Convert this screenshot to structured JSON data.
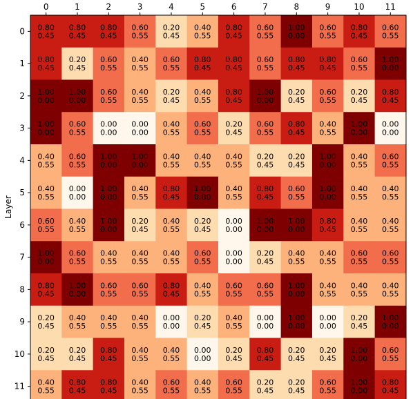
{
  "chart_data": {
    "type": "heatmap",
    "title": "",
    "xlabel": "",
    "ylabel": "Layer",
    "x_tick_position": "top",
    "colormap": "OrRd",
    "value_range": [
      0.0,
      1.0
    ],
    "x_tick_labels": [
      "0",
      "1",
      "2",
      "3",
      "4",
      "5",
      "6",
      "7",
      "8",
      "9",
      "10",
      "11"
    ],
    "y_tick_labels": [
      "0",
      "1",
      "2",
      "3",
      "4",
      "5",
      "6",
      "7",
      "8",
      "9",
      "10",
      "11"
    ],
    "cells": [
      [
        [
          "0.80",
          "0.45"
        ],
        [
          "0.80",
          "0.45"
        ],
        [
          "0.80",
          "0.45"
        ],
        [
          "0.60",
          "0.55"
        ],
        [
          "0.20",
          "0.45"
        ],
        [
          "0.40",
          "0.55"
        ],
        [
          "0.80",
          "0.45"
        ],
        [
          "0.60",
          "0.55"
        ],
        [
          "1.00",
          "0.00"
        ],
        [
          "0.60",
          "0.55"
        ],
        [
          "0.80",
          "0.45"
        ],
        [
          "0.60",
          "0.55"
        ]
      ],
      [
        [
          "0.80",
          "0.45"
        ],
        [
          "0.20",
          "0.45"
        ],
        [
          "0.60",
          "0.55"
        ],
        [
          "0.40",
          "0.55"
        ],
        [
          "0.60",
          "0.55"
        ],
        [
          "0.80",
          "0.45"
        ],
        [
          "0.80",
          "0.45"
        ],
        [
          "0.60",
          "0.55"
        ],
        [
          "0.80",
          "0.45"
        ],
        [
          "0.80",
          "0.45"
        ],
        [
          "0.60",
          "0.55"
        ],
        [
          "1.00",
          "0.00"
        ]
      ],
      [
        [
          "1.00",
          "0.00"
        ],
        [
          "1.00",
          "0.00"
        ],
        [
          "0.60",
          "0.55"
        ],
        [
          "0.40",
          "0.55"
        ],
        [
          "0.20",
          "0.45"
        ],
        [
          "0.40",
          "0.55"
        ],
        [
          "0.80",
          "0.45"
        ],
        [
          "1.00",
          "0.00"
        ],
        [
          "0.20",
          "0.45"
        ],
        [
          "0.60",
          "0.55"
        ],
        [
          "0.20",
          "0.45"
        ],
        [
          "0.80",
          "0.45"
        ]
      ],
      [
        [
          "1.00",
          "0.00"
        ],
        [
          "0.60",
          "0.55"
        ],
        [
          "0.00",
          "0.00"
        ],
        [
          "0.00",
          "0.00"
        ],
        [
          "0.40",
          "0.55"
        ],
        [
          "0.60",
          "0.55"
        ],
        [
          "0.20",
          "0.45"
        ],
        [
          "0.60",
          "0.55"
        ],
        [
          "0.80",
          "0.45"
        ],
        [
          "0.40",
          "0.55"
        ],
        [
          "1.00",
          "0.00"
        ],
        [
          "0.00",
          "0.00"
        ]
      ],
      [
        [
          "0.40",
          "0.55"
        ],
        [
          "0.60",
          "0.55"
        ],
        [
          "1.00",
          "0.00"
        ],
        [
          "1.00",
          "0.00"
        ],
        [
          "0.40",
          "0.55"
        ],
        [
          "0.40",
          "0.55"
        ],
        [
          "0.40",
          "0.55"
        ],
        [
          "0.20",
          "0.45"
        ],
        [
          "0.20",
          "0.45"
        ],
        [
          "1.00",
          "0.00"
        ],
        [
          "0.40",
          "0.55"
        ],
        [
          "0.60",
          "0.55"
        ]
      ],
      [
        [
          "0.40",
          "0.55"
        ],
        [
          "0.00",
          "0.00"
        ],
        [
          "1.00",
          "0.00"
        ],
        [
          "0.40",
          "0.55"
        ],
        [
          "0.80",
          "0.45"
        ],
        [
          "1.00",
          "0.00"
        ],
        [
          "0.40",
          "0.55"
        ],
        [
          "0.80",
          "0.45"
        ],
        [
          "0.60",
          "0.55"
        ],
        [
          "1.00",
          "0.00"
        ],
        [
          "0.40",
          "0.55"
        ],
        [
          "0.40",
          "0.55"
        ]
      ],
      [
        [
          "0.60",
          "0.55"
        ],
        [
          "0.40",
          "0.55"
        ],
        [
          "1.00",
          "0.00"
        ],
        [
          "0.20",
          "0.45"
        ],
        [
          "0.40",
          "0.55"
        ],
        [
          "0.20",
          "0.45"
        ],
        [
          "0.00",
          "0.00"
        ],
        [
          "1.00",
          "0.00"
        ],
        [
          "1.00",
          "0.00"
        ],
        [
          "0.80",
          "0.45"
        ],
        [
          "0.40",
          "0.55"
        ],
        [
          "0.40",
          "0.55"
        ]
      ],
      [
        [
          "1.00",
          "0.00"
        ],
        [
          "0.60",
          "0.55"
        ],
        [
          "0.40",
          "0.55"
        ],
        [
          "0.40",
          "0.55"
        ],
        [
          "0.40",
          "0.55"
        ],
        [
          "0.60",
          "0.55"
        ],
        [
          "0.00",
          "0.00"
        ],
        [
          "0.20",
          "0.45"
        ],
        [
          "0.40",
          "0.55"
        ],
        [
          "0.40",
          "0.55"
        ],
        [
          "0.60",
          "0.55"
        ],
        [
          "0.60",
          "0.55"
        ]
      ],
      [
        [
          "0.80",
          "0.45"
        ],
        [
          "1.00",
          "0.00"
        ],
        [
          "0.60",
          "0.55"
        ],
        [
          "0.60",
          "0.55"
        ],
        [
          "0.80",
          "0.45"
        ],
        [
          "0.40",
          "0.55"
        ],
        [
          "0.60",
          "0.55"
        ],
        [
          "0.60",
          "0.55"
        ],
        [
          "1.00",
          "0.00"
        ],
        [
          "0.40",
          "0.55"
        ],
        [
          "0.40",
          "0.55"
        ],
        [
          "0.40",
          "0.55"
        ]
      ],
      [
        [
          "0.20",
          "0.45"
        ],
        [
          "0.40",
          "0.55"
        ],
        [
          "0.40",
          "0.55"
        ],
        [
          "0.40",
          "0.55"
        ],
        [
          "0.00",
          "0.00"
        ],
        [
          "0.20",
          "0.45"
        ],
        [
          "0.40",
          "0.55"
        ],
        [
          "0.00",
          "0.00"
        ],
        [
          "1.00",
          "0.00"
        ],
        [
          "0.00",
          "0.00"
        ],
        [
          "0.20",
          "0.45"
        ],
        [
          "1.00",
          "0.00"
        ]
      ],
      [
        [
          "0.20",
          "0.45"
        ],
        [
          "0.20",
          "0.45"
        ],
        [
          "0.80",
          "0.45"
        ],
        [
          "0.40",
          "0.55"
        ],
        [
          "0.40",
          "0.55"
        ],
        [
          "0.00",
          "0.00"
        ],
        [
          "0.20",
          "0.45"
        ],
        [
          "0.80",
          "0.45"
        ],
        [
          "0.20",
          "0.45"
        ],
        [
          "0.20",
          "0.45"
        ],
        [
          "1.00",
          "0.00"
        ],
        [
          "0.60",
          "0.55"
        ]
      ],
      [
        [
          "0.40",
          "0.55"
        ],
        [
          "0.80",
          "0.45"
        ],
        [
          "0.80",
          "0.45"
        ],
        [
          "0.40",
          "0.55"
        ],
        [
          "0.60",
          "0.55"
        ],
        [
          "0.40",
          "0.55"
        ],
        [
          "0.60",
          "0.55"
        ],
        [
          "0.20",
          "0.45"
        ],
        [
          "0.20",
          "0.45"
        ],
        [
          "0.60",
          "0.55"
        ],
        [
          "1.00",
          "0.00"
        ],
        [
          "0.80",
          "0.45"
        ]
      ]
    ]
  }
}
